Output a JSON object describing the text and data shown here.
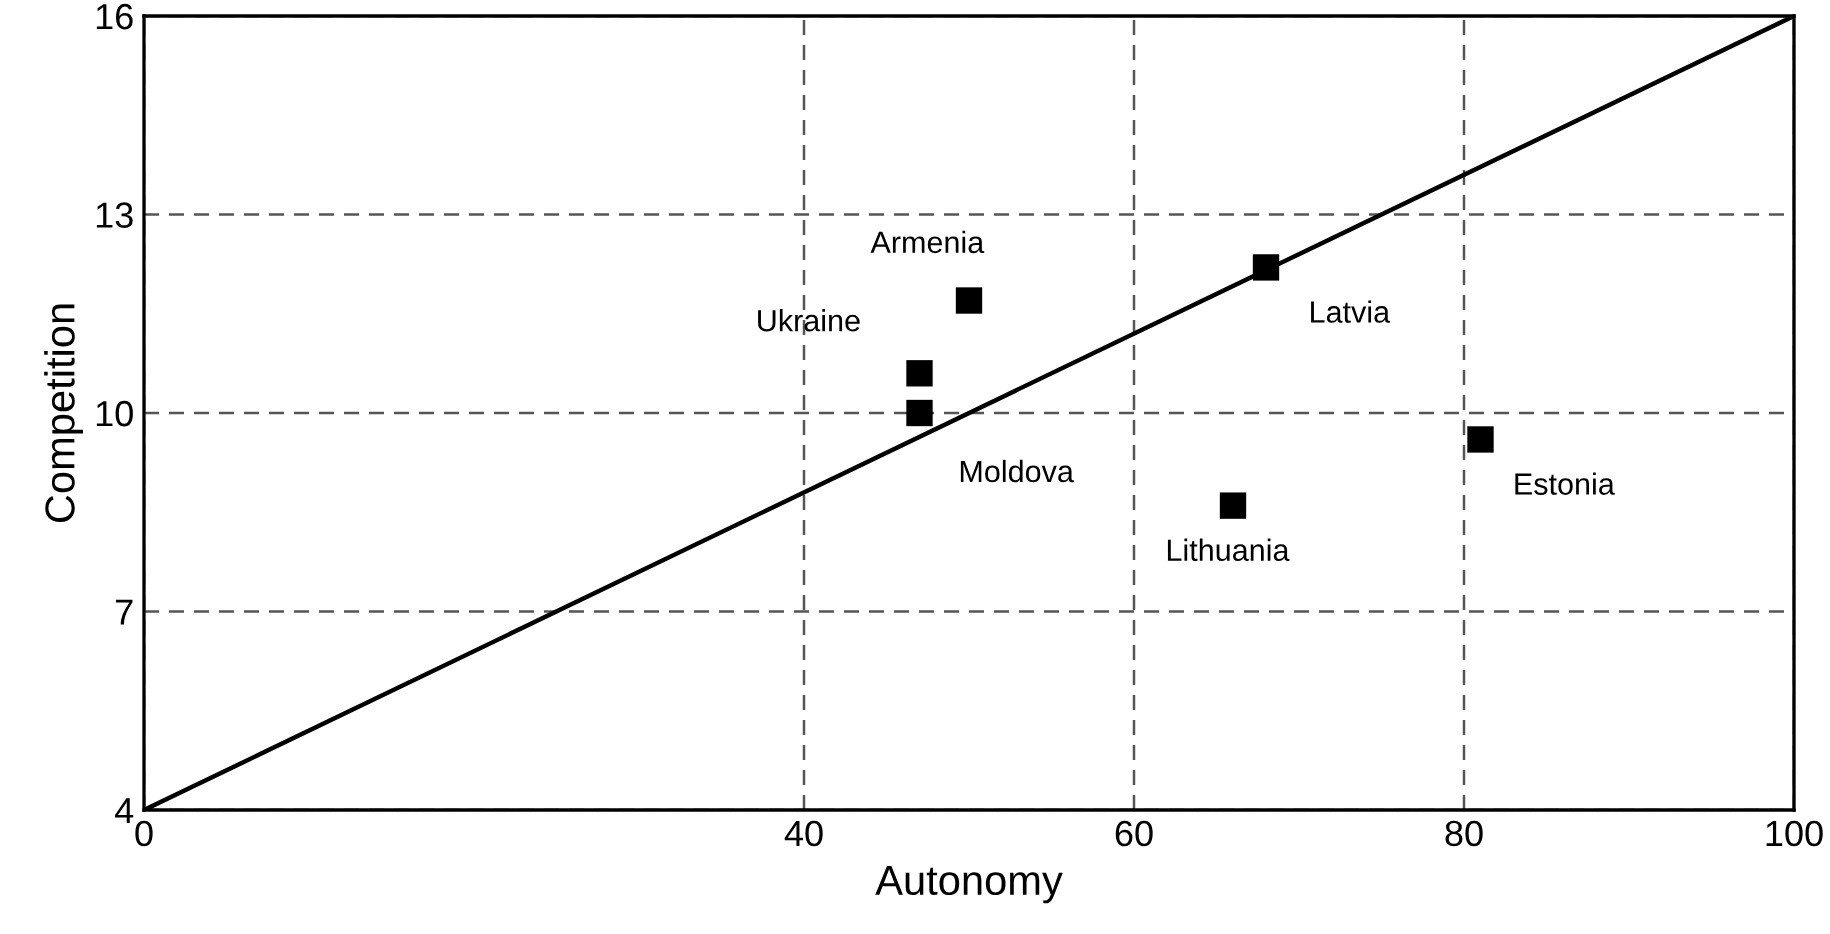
{
  "chart_data": {
    "type": "scatter",
    "xlabel": "Autonomy",
    "ylabel": "Competition",
    "xlim": [
      0,
      100
    ],
    "ylim": [
      4,
      16
    ],
    "xticks": [
      0,
      40,
      60,
      80,
      100
    ],
    "yticks": [
      4,
      7,
      10,
      13,
      16
    ],
    "grid": true,
    "marker": "square",
    "series": [
      {
        "color": "#000000",
        "x": [
          50,
          47,
          47,
          68,
          66,
          81
        ],
        "values": [
          11.7,
          10.6,
          10.0,
          12.2,
          8.6,
          9.6
        ]
      },
      {
        "type": "line",
        "color": "#000000",
        "x": [
          0,
          100
        ],
        "values": [
          4,
          16
        ],
        "line_style": "solid",
        "marker": "none"
      }
    ],
    "annotations": [
      {
        "text": "Armenia",
        "x": 50,
        "y": 11.7
      },
      {
        "text": "Ukraine",
        "x": 47,
        "y": 10.6
      },
      {
        "text": "Moldova",
        "x": 47,
        "y": 10.0
      },
      {
        "text": "Latvia",
        "x": 68,
        "y": 12.2
      },
      {
        "text": "Lithuania",
        "x": 66,
        "y": 8.6
      },
      {
        "text": "Estonia",
        "x": 81,
        "y": 9.6
      }
    ]
  }
}
